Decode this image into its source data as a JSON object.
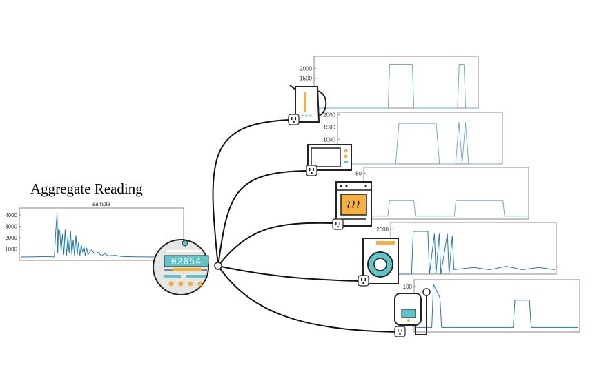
{
  "diagram": {
    "heading": "Aggregate Reading",
    "meter": {
      "display_digits": "02854"
    },
    "colors": {
      "line": "#6aaed6",
      "line_dark": "#1f77b4",
      "orange": "#f5b041",
      "teal": "#5ec4c8",
      "gray": "#a0a0a0",
      "frame": "#888888"
    }
  },
  "chart_data": [
    {
      "id": "aggregate",
      "type": "line",
      "title": "sample",
      "xlabel": "",
      "ylabel": "",
      "ylim": [
        0,
        4600
      ],
      "y_ticks": [
        "1000",
        "2000",
        "3000",
        "4000"
      ],
      "y_tick_values": [
        1000,
        2000,
        3000,
        4000
      ],
      "series": [
        {
          "name": "aggregate",
          "color": "#1f77b4",
          "x": [
            0,
            20,
            40,
            50,
            52,
            54,
            55,
            56,
            58,
            60,
            62,
            64,
            66,
            68,
            70,
            72,
            74,
            76,
            78,
            80,
            82,
            84,
            86,
            88,
            90,
            92,
            94,
            96,
            98,
            100,
            105,
            110,
            115,
            120,
            125,
            130,
            140,
            150,
            170,
            200,
            240
          ],
          "y": [
            300,
            320,
            350,
            300,
            2500,
            4200,
            600,
            2700,
            2600,
            800,
            2300,
            500,
            2700,
            400,
            2100,
            600,
            2600,
            500,
            1800,
            400,
            2200,
            500,
            1600,
            400,
            1400,
            700,
            1200,
            400,
            1100,
            500,
            900,
            600,
            700,
            400,
            600,
            400,
            450,
            350,
            320,
            300,
            280
          ]
        }
      ]
    },
    {
      "id": "kettle",
      "type": "line",
      "title": "",
      "ylim": [
        0,
        2600
      ],
      "y_ticks": [
        "1500",
        "2000"
      ],
      "y_tick_values": [
        1500,
        2000
      ],
      "series": [
        {
          "name": "kettle",
          "color": "#6aaed6",
          "x": [
            0,
            45,
            46,
            60,
            61,
            88,
            89,
            92,
            93,
            100
          ],
          "y": [
            0,
            0,
            2200,
            2200,
            0,
            0,
            2200,
            2200,
            0,
            0
          ]
        }
      ]
    },
    {
      "id": "microwave",
      "type": "line",
      "title": "",
      "ylim": [
        0,
        2100
      ],
      "y_ticks": [
        "1000",
        "1500",
        "2000"
      ],
      "y_tick_values": [
        1000,
        1500,
        2000
      ],
      "series": [
        {
          "name": "microwave",
          "color": "#6aaed6",
          "x": [
            0,
            35,
            37,
            60,
            62,
            72,
            74,
            76,
            78,
            80,
            82,
            100
          ],
          "y": [
            0,
            0,
            1650,
            1650,
            0,
            0,
            1700,
            0,
            1700,
            0,
            0,
            0
          ]
        }
      ]
    },
    {
      "id": "oven",
      "type": "line",
      "title": "",
      "ylim": [
        0,
        90
      ],
      "y_ticks": [
        "80"
      ],
      "y_tick_values": [
        80
      ],
      "series": [
        {
          "name": "oven",
          "color": "#6aaed6",
          "x": [
            0,
            14,
            15,
            30,
            31,
            55,
            56,
            85,
            86,
            100
          ],
          "y": [
            5,
            5,
            32,
            32,
            5,
            5,
            32,
            32,
            5,
            5
          ]
        }
      ]
    },
    {
      "id": "washer",
      "type": "line",
      "title": "",
      "ylim": [
        0,
        2300
      ],
      "y_ticks": [
        "2000"
      ],
      "y_tick_values": [
        2000
      ],
      "series": [
        {
          "name": "washer",
          "color": "#1f77b4",
          "x": [
            0,
            12,
            13,
            22,
            23,
            26,
            27,
            29,
            30,
            34,
            35,
            37,
            38,
            50,
            60,
            70,
            80,
            90,
            100
          ],
          "y": [
            0,
            0,
            1900,
            1900,
            0,
            1800,
            0,
            1800,
            0,
            1800,
            0,
            1700,
            200,
            300,
            200,
            350,
            200,
            300,
            200
          ]
        }
      ]
    },
    {
      "id": "heater",
      "type": "line",
      "title": "",
      "ylim": [
        0,
        115
      ],
      "y_ticks": [
        "100"
      ],
      "y_tick_values": [
        100
      ],
      "series": [
        {
          "name": "heater",
          "color": "#1f77b4",
          "x": [
            0,
            10,
            11,
            15,
            16,
            60,
            61,
            70,
            71,
            100
          ],
          "y": [
            10,
            10,
            105,
            75,
            10,
            10,
            70,
            70,
            10,
            10
          ]
        }
      ]
    }
  ]
}
